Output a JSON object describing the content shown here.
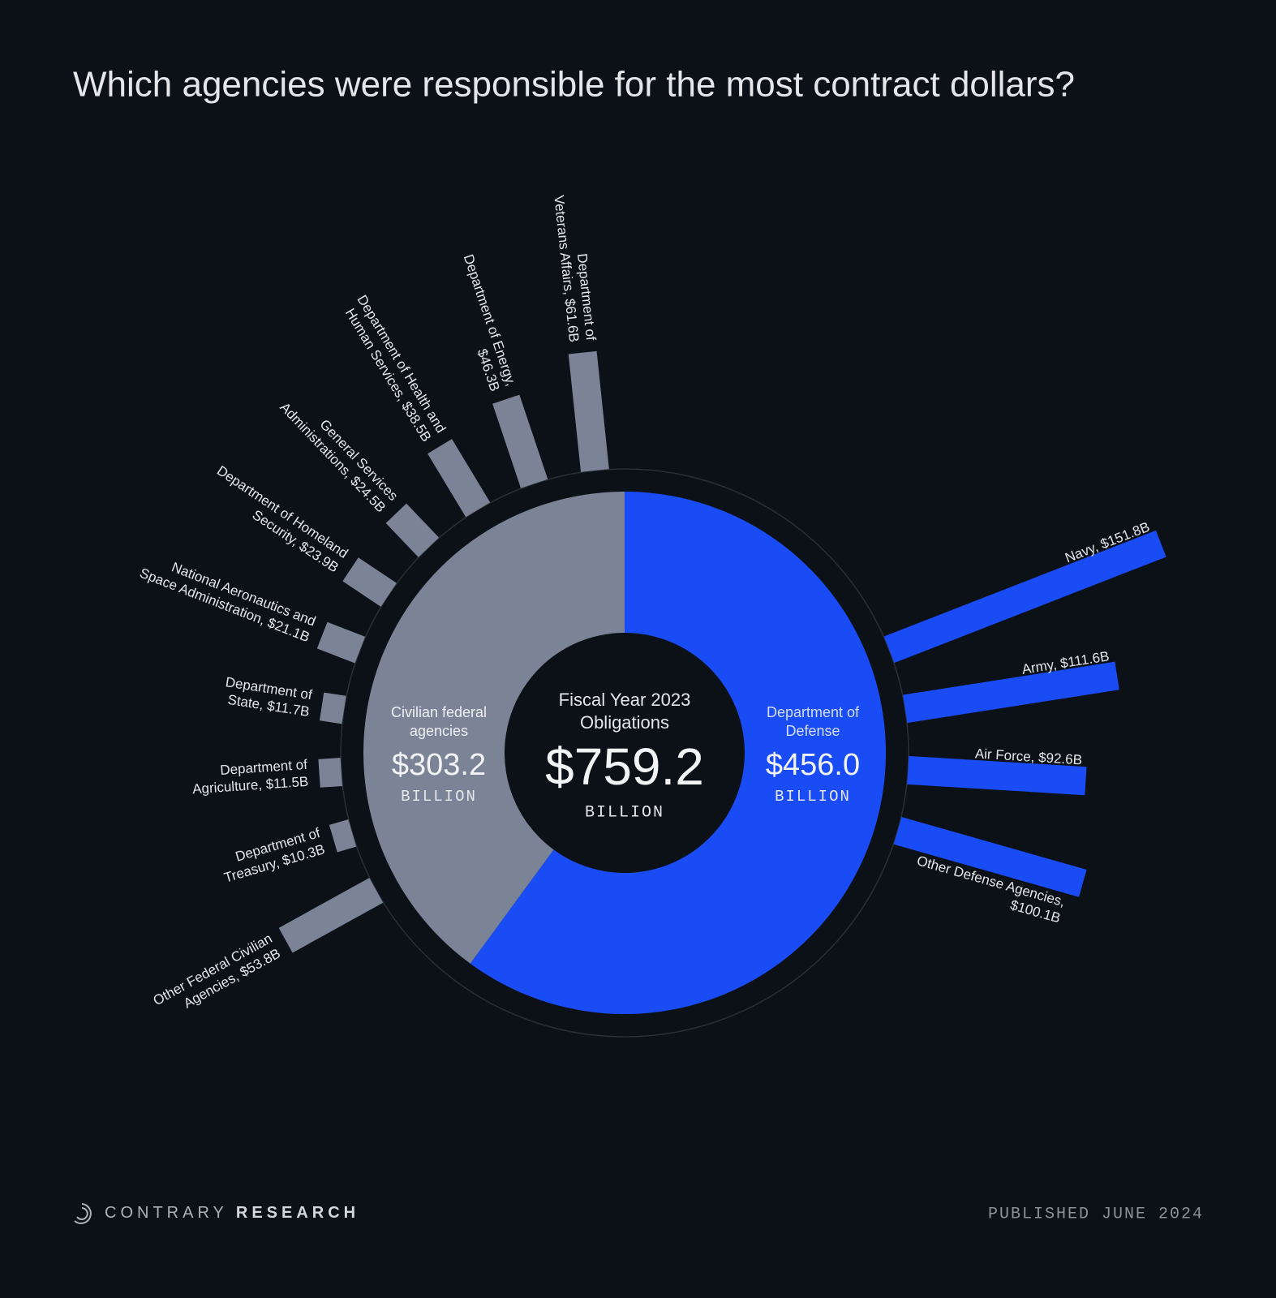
{
  "chart_data": {
    "type": "donut",
    "title": "Which agencies were responsible for the most contract dollars?",
    "center": {
      "label": [
        "Fiscal Year 2023",
        "Obligations"
      ],
      "value": 759.2,
      "value_label": "$759.2",
      "unit": "BILLION"
    },
    "series": [
      {
        "name": [
          "Civilian federal",
          "agencies"
        ],
        "value": 303.2,
        "value_label": "$303.2",
        "unit": "BILLION",
        "color": "#7b8496",
        "bars": {
          "labels": [
            [
              "Department of",
              "Veterans Affairs, $61.6B"
            ],
            [
              "Department of Energy,",
              "$46.3B"
            ],
            [
              "Department of Health and",
              "Human Services, $38.5B"
            ],
            [
              "General Services",
              "Administrations, $24.5B"
            ],
            [
              "Department of Homeland",
              "Security, $23.9B"
            ],
            [
              "National Aeronautics and",
              "Space Administration, $21.1B"
            ],
            [
              "Department of",
              "State, $11.7B"
            ],
            [
              "Department of",
              "Agriculture, $11.5B"
            ],
            [
              "Department of",
              "Treasury, $10.3B"
            ],
            [
              "Other Federal Civilian",
              "Agencies, $53.8B"
            ]
          ],
          "values": [
            61.6,
            46.3,
            38.5,
            24.5,
            23.9,
            21.1,
            11.7,
            11.5,
            10.3,
            53.8
          ]
        }
      },
      {
        "name": [
          "Department of",
          "Defense"
        ],
        "value": 456.0,
        "value_label": "$456.0",
        "unit": "BILLION",
        "color": "#1a4cf5",
        "bars": {
          "labels": [
            [
              "Navy, $151.8B"
            ],
            [
              "Army, $111.6B"
            ],
            [
              "Air Force, $92.6B"
            ],
            [
              "Other Defense Agencies,",
              "$100.1B"
            ]
          ],
          "values": [
            151.8,
            111.6,
            92.6,
            100.1
          ]
        }
      }
    ]
  },
  "footer": {
    "brand": [
      "CONTRARY",
      "RESEARCH"
    ],
    "published": "PUBLISHED JUNE 2024"
  }
}
